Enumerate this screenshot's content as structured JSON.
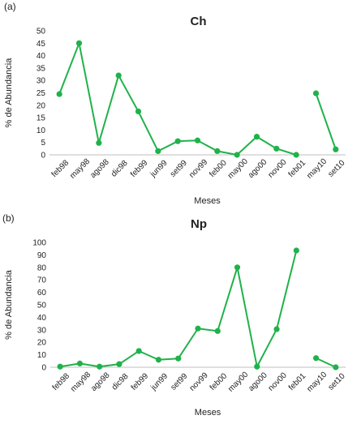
{
  "chart_data": [
    {
      "panel_label": "(a)",
      "type": "line",
      "title": "Ch",
      "xlabel": "Meses",
      "ylabel": "% de Abundancia",
      "ylim": [
        0,
        50
      ],
      "yticks": [
        0,
        5,
        10,
        15,
        20,
        25,
        30,
        35,
        40,
        45,
        50
      ],
      "categories": [
        "feb98",
        "may98",
        "ago98",
        "dic98",
        "feb99",
        "jun99",
        "set99",
        "nov99",
        "feb00",
        "may00",
        "ago00",
        "nov00",
        "feb01",
        "may10",
        "set10"
      ],
      "series": [
        {
          "color": "#1fb24a",
          "values": [
            24.5,
            45,
            4.8,
            32,
            17.5,
            1.5,
            5.5,
            5.8,
            1.5,
            0,
            7.3,
            2.5,
            0,
            24.8,
            2.2
          ],
          "gap_before_index": 13
        }
      ]
    },
    {
      "panel_label": "(b)",
      "type": "line",
      "title": "Np",
      "xlabel": "Meses",
      "ylabel": "% de Abundancia",
      "ylim": [
        0,
        100
      ],
      "yticks": [
        0,
        10,
        20,
        30,
        40,
        50,
        60,
        70,
        80,
        90,
        100
      ],
      "categories": [
        "feb98",
        "may98",
        "ago98",
        "dic98",
        "feb99",
        "jun99",
        "set99",
        "nov99",
        "feb00",
        "may00",
        "ago00",
        "nov00",
        "feb01",
        "may10",
        "set10"
      ],
      "series": [
        {
          "color": "#1fb24a",
          "values": [
            0.5,
            3,
            0.5,
            2.5,
            13,
            6,
            7,
            31,
            29,
            80,
            0.5,
            30.5,
            93.5,
            7.3,
            0
          ],
          "gap_before_index": 13
        }
      ]
    }
  ]
}
